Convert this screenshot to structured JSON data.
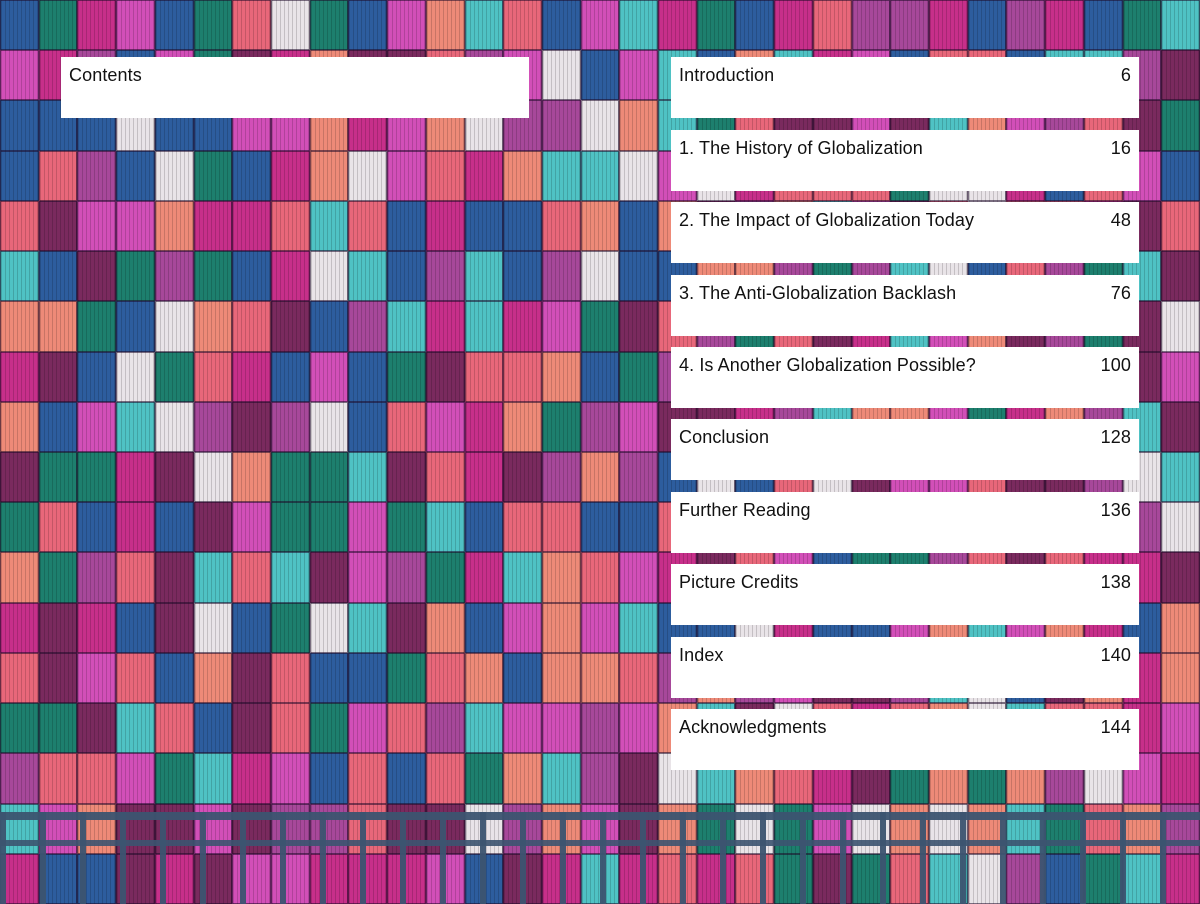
{
  "contents_heading": "Contents",
  "entries": [
    {
      "title": "Introduction",
      "page": "6"
    },
    {
      "title": "1.  The History of Globalization",
      "page": "16"
    },
    {
      "title": "2. The Impact of Globalization Today",
      "page": "48"
    },
    {
      "title": "3. The Anti-Globalization Backlash",
      "page": "76"
    },
    {
      "title": "4. Is Another Globalization Possible?",
      "page": "100"
    },
    {
      "title": "Conclusion",
      "page": "128"
    },
    {
      "title": "Further Reading",
      "page": "136"
    },
    {
      "title": "Picture Credits",
      "page": "138"
    },
    {
      "title": "Index",
      "page": "140"
    },
    {
      "title": "Acknowledgments",
      "page": "144"
    }
  ],
  "background": {
    "image": "stacked-shipping-containers",
    "colors": [
      "#e8677a",
      "#c72f8a",
      "#d24fb8",
      "#7a2a5e",
      "#2d5d9e",
      "#1d7f6e",
      "#4fc2c4",
      "#ee8a78",
      "#e9e4e8",
      "#a7489a"
    ]
  }
}
